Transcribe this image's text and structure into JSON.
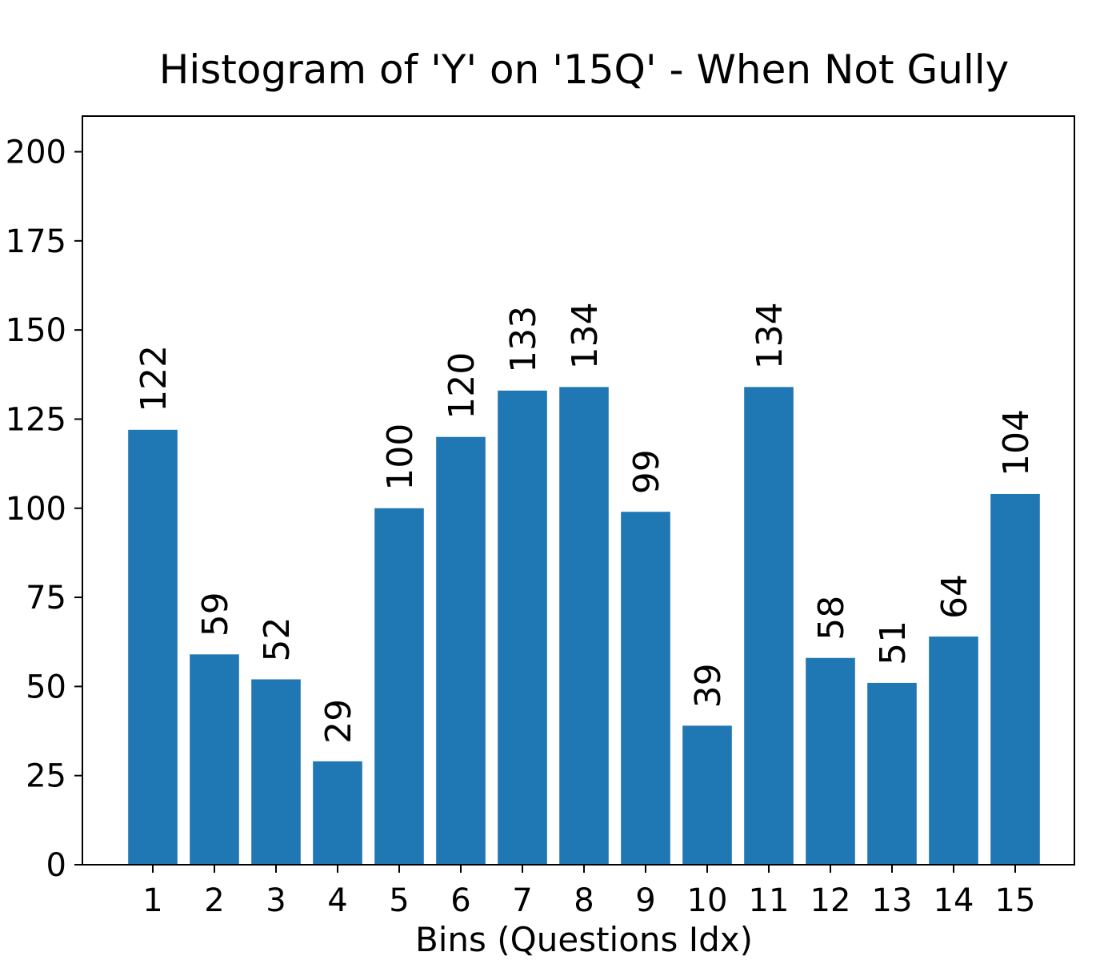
{
  "chart_data": {
    "type": "bar",
    "title": "Histogram of 'Y' on '15Q' - When Not Gully",
    "x_label": "Bins (Questions Idx)",
    "categories": [
      "1",
      "2",
      "3",
      "4",
      "5",
      "6",
      "7",
      "8",
      "9",
      "10",
      "11",
      "12",
      "13",
      "14",
      "15"
    ],
    "values": [
      122,
      59,
      52,
      29,
      100,
      120,
      133,
      134,
      99,
      39,
      134,
      58,
      51,
      64,
      104
    ],
    "color": "#1f77b4",
    "ylim": [
      0,
      210
    ],
    "yticks": [
      0,
      25,
      50,
      75,
      100,
      125,
      150,
      175,
      200
    ]
  }
}
